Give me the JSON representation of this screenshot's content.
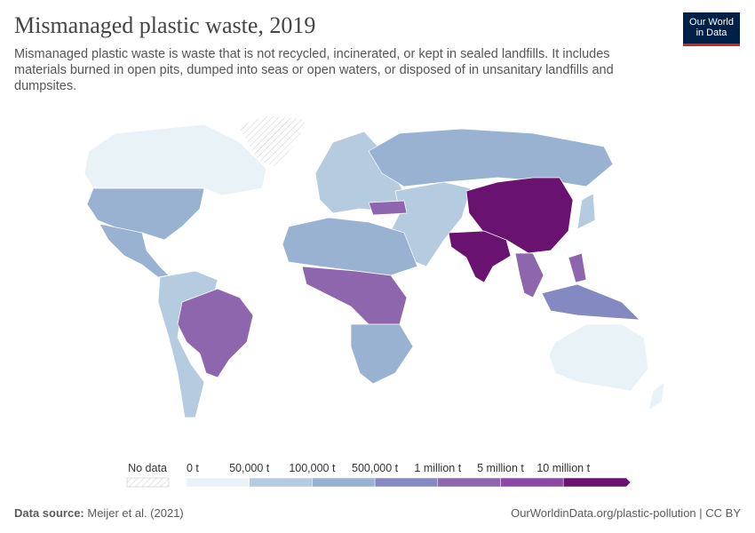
{
  "header": {
    "title": "Mismanaged plastic waste, 2019",
    "subtitle": "Mismanaged plastic waste is waste that is not recycled, incinerated, or kept in sealed landfills. It includes materials burned in open pits, dumped into seas or open waters, or disposed of in unsanitary landfills and dumpsites.",
    "logo": [
      "Our World",
      "in Data"
    ]
  },
  "legend": {
    "no_data": "No data",
    "labels": [
      "0 t",
      "50,000 t",
      "100,000 t",
      "500,000 t",
      "1 million t",
      "5 million t",
      "10 million t"
    ],
    "colors": [
      "#e9f3f7",
      "#b5cbe0",
      "#99b2d2",
      "#8489c1",
      "#8e66ae",
      "#8b48a5",
      "#6a1270"
    ]
  },
  "footer": {
    "source_label": "Data source:",
    "source": "Meijer et al. (2021)",
    "link": "OurWorldinData.org/plastic-pollution | CC BY"
  }
}
